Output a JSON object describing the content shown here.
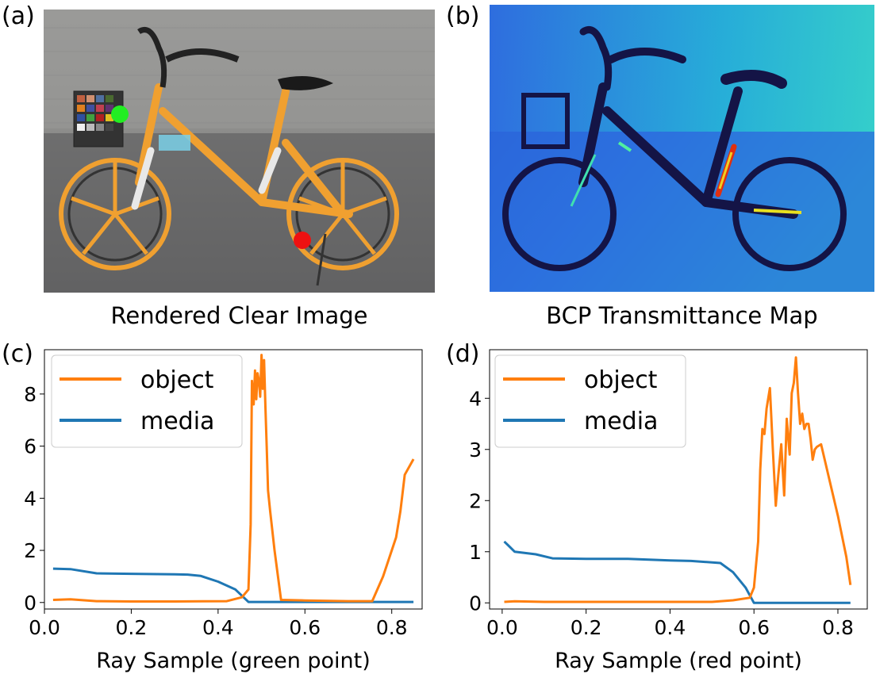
{
  "panels": {
    "a": {
      "label": "(a)",
      "caption": "Rendered Clear Image"
    },
    "b": {
      "label": "(b)",
      "caption": "BCP Transmittance Map"
    },
    "c": {
      "label": "(c)"
    },
    "d": {
      "label": "(d)"
    }
  },
  "colors": {
    "object": "#ff7f0e",
    "media": "#1f77b4",
    "green_point": "#22ee22",
    "red_point": "#ee1111",
    "bike_orange": "#f0a030"
  },
  "icons": [
    "bicycle-photo",
    "transmittance-heatmap"
  ],
  "chart_data": [
    {
      "type": "line",
      "panel": "(c)",
      "title": "",
      "xlabel": "Ray Sample (green point)",
      "ylabel": "",
      "xlim": [
        0.0,
        0.87
      ],
      "ylim": [
        -0.25,
        9.7
      ],
      "xticks": [
        0.0,
        0.2,
        0.4,
        0.6,
        0.8
      ],
      "xtick_labels": [
        "0.0",
        "0.2",
        "0.4",
        "0.6",
        "0.8"
      ],
      "yticks": [
        0,
        2,
        4,
        6,
        8
      ],
      "ytick_labels": [
        "0",
        "2",
        "4",
        "6",
        "8"
      ],
      "legend": {
        "placement": "top-left",
        "entries": [
          "object",
          "media"
        ]
      },
      "series": [
        {
          "name": "object",
          "x": [
            0.02,
            0.06,
            0.12,
            0.2,
            0.3,
            0.42,
            0.455,
            0.47,
            0.475,
            0.478,
            0.482,
            0.485,
            0.488,
            0.491,
            0.494,
            0.497,
            0.5,
            0.503,
            0.506,
            0.509,
            0.512,
            0.515,
            0.52,
            0.53,
            0.545,
            0.6,
            0.7,
            0.755,
            0.78,
            0.81,
            0.82,
            0.83,
            0.85
          ],
          "y": [
            0.1,
            0.12,
            0.05,
            0.04,
            0.04,
            0.05,
            0.2,
            0.5,
            3.0,
            8.5,
            7.6,
            8.9,
            7.8,
            8.8,
            8.5,
            7.9,
            9.5,
            8.2,
            9.3,
            7.5,
            6.0,
            4.3,
            3.5,
            2.0,
            0.1,
            0.08,
            0.05,
            0.05,
            1.0,
            2.5,
            3.5,
            4.9,
            5.5
          ]
        },
        {
          "name": "media",
          "x": [
            0.02,
            0.06,
            0.12,
            0.2,
            0.3,
            0.33,
            0.36,
            0.4,
            0.44,
            0.47,
            0.5,
            0.6,
            0.7,
            0.8,
            0.85
          ],
          "y": [
            1.3,
            1.28,
            1.12,
            1.1,
            1.08,
            1.07,
            1.02,
            0.8,
            0.5,
            0.02,
            0.02,
            0.02,
            0.02,
            0.02,
            0.02
          ]
        }
      ]
    },
    {
      "type": "line",
      "panel": "(d)",
      "title": "",
      "xlabel": "Ray Sample (red point)",
      "ylabel": "",
      "xlim": [
        -0.03,
        0.87
      ],
      "ylim": [
        -0.12,
        4.95
      ],
      "xticks": [
        0.0,
        0.2,
        0.4,
        0.6,
        0.8
      ],
      "xtick_labels": [
        "0.0",
        "0.2",
        "0.4",
        "0.6",
        "0.8"
      ],
      "yticks": [
        0,
        1,
        2,
        3,
        4
      ],
      "ytick_labels": [
        "0",
        "1",
        "2",
        "3",
        "4"
      ],
      "legend": {
        "placement": "top-left",
        "entries": [
          "object",
          "media"
        ]
      },
      "series": [
        {
          "name": "object",
          "x": [
            0.005,
            0.03,
            0.1,
            0.3,
            0.5,
            0.55,
            0.59,
            0.6,
            0.61,
            0.615,
            0.62,
            0.625,
            0.63,
            0.638,
            0.645,
            0.652,
            0.658,
            0.665,
            0.672,
            0.678,
            0.685,
            0.69,
            0.695,
            0.7,
            0.705,
            0.71,
            0.715,
            0.72,
            0.725,
            0.73,
            0.735,
            0.74,
            0.745,
            0.75,
            0.76,
            0.78,
            0.8,
            0.82,
            0.83
          ],
          "y": [
            0.02,
            0.03,
            0.02,
            0.02,
            0.02,
            0.05,
            0.1,
            0.3,
            1.2,
            2.6,
            3.4,
            3.3,
            3.8,
            4.2,
            3.0,
            1.9,
            2.5,
            3.1,
            2.1,
            3.6,
            2.9,
            4.1,
            4.3,
            4.8,
            4.1,
            3.5,
            3.7,
            3.4,
            3.5,
            3.5,
            3.2,
            2.8,
            3.0,
            3.05,
            3.1,
            2.4,
            1.7,
            0.9,
            0.35
          ]
        },
        {
          "name": "media",
          "x": [
            0.005,
            0.015,
            0.03,
            0.08,
            0.12,
            0.2,
            0.3,
            0.4,
            0.45,
            0.52,
            0.55,
            0.58,
            0.6,
            0.7,
            0.8,
            0.83
          ],
          "y": [
            1.2,
            1.12,
            1.0,
            0.95,
            0.87,
            0.86,
            0.86,
            0.83,
            0.82,
            0.78,
            0.6,
            0.3,
            0.0,
            0.0,
            0.0,
            0.0
          ]
        }
      ]
    }
  ]
}
